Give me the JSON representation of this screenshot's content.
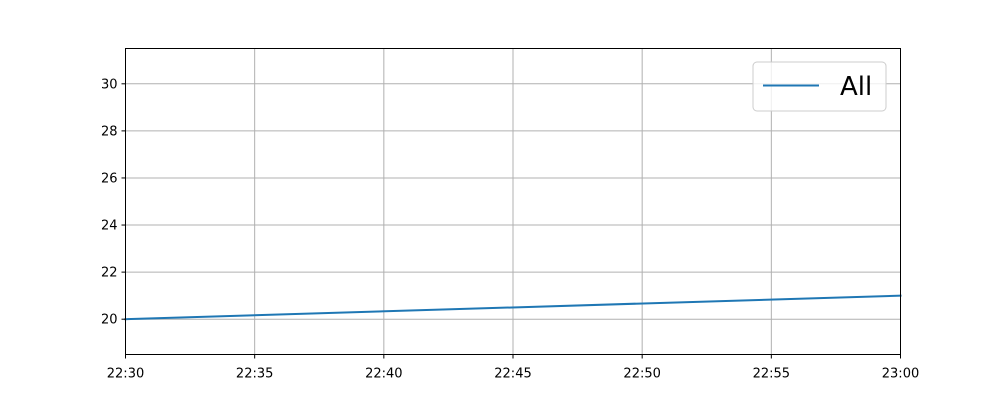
{
  "chart_data": {
    "type": "line",
    "title": "",
    "xlabel": "",
    "ylabel": "",
    "x_ticks": [
      "22:30",
      "22:35",
      "22:40",
      "22:45",
      "22:50",
      "22:55",
      "23:00"
    ],
    "x_range": [
      "22:30",
      "23:00"
    ],
    "y_ticks": [
      20,
      22,
      24,
      26,
      28,
      30
    ],
    "ylim": [
      18.5,
      31.5
    ],
    "grid": true,
    "legend_position": "top-right",
    "series": [
      {
        "name": "All",
        "color": "#1f77b4",
        "x": [
          "22:30",
          "23:00"
        ],
        "y": [
          20.0,
          21.0
        ]
      }
    ]
  }
}
